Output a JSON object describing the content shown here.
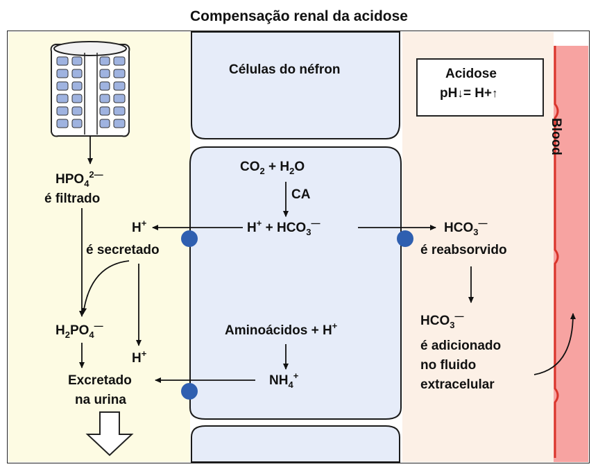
{
  "title": "Compensação renal da acidose",
  "cells_label": "Células do néfron",
  "acidosis_box": {
    "line1": "Acidose",
    "ph_text": "pH",
    "equals_h": "= H+"
  },
  "blood_label": "Blood",
  "tubule": {
    "hpo4_formula": "HPO",
    "hpo4_sub": "4",
    "hpo4_sup": "2—",
    "filtrado": "é filtrado",
    "h_plus_top": "H",
    "h_plus_sup": "+",
    "secretado": "é secretado",
    "h2po4_h": "H",
    "h2po4_sub1": "2",
    "h2po4_po": "PO",
    "h2po4_sub2": "4",
    "h2po4_sup": "—",
    "h_plus_bottom": "H",
    "h_plus_bottom_sup": "+",
    "excretado": "Excretado",
    "na_urina": "na urina"
  },
  "cell": {
    "co2_a": "CO",
    "co2_sub": "2",
    "co2_b": " + H",
    "h2o_sub": "2",
    "h2o_b": "O",
    "ca": "CA",
    "h_plus": "H",
    "h_plus_sup": "+",
    "hco3_a": " + HCO",
    "hco3_sub": "3",
    "hco3_sup": "—",
    "amino": "Aminoácidos + H",
    "amino_sup": "+",
    "nh4_a": "NH",
    "nh4_sub": "4",
    "nh4_sup": "+"
  },
  "ecf": {
    "hco3_a": "HCO",
    "hco3_sub": "3",
    "hco3_sup": "—",
    "reabsorvido": "é reabsorvido",
    "hco3b_a": "HCO",
    "hco3b_sub": "3",
    "hco3b_sup": "—",
    "adicionado": "é adicionado",
    "no_fluido": "no fluido",
    "extracelular": "extracelular"
  },
  "colors": {
    "tubule_fill": "#fdfbe3",
    "cell_fill": "#e6ecf9",
    "ecf_fill": "#fcf0e6",
    "blood_fill": "#f7a3a1",
    "blood_stroke": "#d9342b",
    "transporter": "#2f5fb0"
  }
}
